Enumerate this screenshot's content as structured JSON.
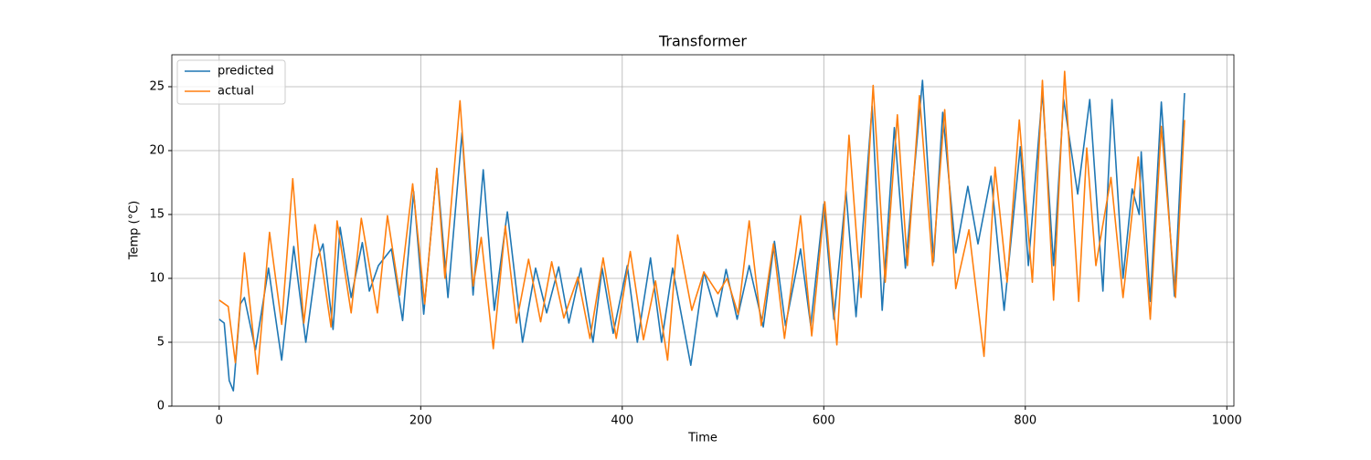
{
  "chart_data": {
    "type": "line",
    "title": "Transformer",
    "x_label": "Time",
    "y_label": "Temp (°C)",
    "xlim": [
      -47,
      1007
    ],
    "ylim": [
      0,
      27.5
    ],
    "xticks": [
      0,
      200,
      400,
      600,
      800,
      1000
    ],
    "yticks": [
      0,
      5,
      10,
      15,
      20,
      25
    ],
    "grid": true,
    "legend": "upper-left",
    "series": [
      {
        "name": "predicted",
        "color": "#1f77b4",
        "x": [
          0,
          5,
          10,
          14,
          21,
          25,
          36,
          49,
          54,
          62,
          74,
          86,
          97,
          103,
          113,
          120,
          131,
          142,
          149,
          158,
          171,
          182,
          193,
          203,
          216,
          227,
          241,
          252,
          262,
          273,
          286,
          301,
          314,
          325,
          337,
          347,
          359,
          371,
          380,
          391,
          405,
          415,
          428,
          439,
          450,
          468,
          481,
          494,
          503,
          514,
          526,
          540,
          551,
          562,
          577,
          587,
          600,
          610,
          622,
          632,
          648,
          658,
          670,
          681,
          698,
          709,
          718,
          731,
          743,
          753,
          766,
          779,
          795,
          803,
          817,
          828,
          838,
          852,
          864,
          877,
          886,
          897,
          906,
          913,
          915,
          924,
          935,
          948,
          958
        ],
        "values": [
          6.8,
          6.5,
          2,
          1.2,
          8,
          8.5,
          4.4,
          10.8,
          8,
          3.6,
          12.5,
          5,
          11.5,
          12.7,
          6,
          14,
          8.5,
          12.8,
          9,
          11,
          12.3,
          6.7,
          16.8,
          7.2,
          18.6,
          8.5,
          21.4,
          8.7,
          18.5,
          7.5,
          15.2,
          5,
          10.8,
          7.3,
          10.9,
          6.5,
          10.8,
          5,
          10.8,
          5.7,
          11,
          5,
          11.6,
          5,
          10.8,
          3.2,
          10.5,
          7,
          10.7,
          6.8,
          11,
          6.2,
          12.9,
          6.3,
          12.3,
          6.3,
          15.8,
          6.8,
          16.8,
          7,
          23.5,
          7.5,
          21.8,
          10.8,
          25.5,
          11.3,
          23,
          12,
          17.2,
          12.7,
          18,
          7.5,
          20.3,
          11,
          24.6,
          11,
          24,
          16.6,
          24,
          9,
          24,
          10,
          17,
          15,
          19.9,
          8.2,
          23.8,
          8.6,
          24.5
        ]
      },
      {
        "name": "actual",
        "color": "#ff7f0e",
        "x": [
          0,
          9,
          16,
          25,
          38,
          50,
          62,
          73,
          84,
          95,
          102,
          111,
          117,
          131,
          141,
          157,
          167,
          179,
          192,
          204,
          216,
          224,
          239,
          252,
          260,
          272,
          284,
          295,
          307,
          319,
          330,
          342,
          356,
          368,
          381,
          394,
          408,
          421,
          433,
          445,
          455,
          469,
          481,
          495,
          504,
          515,
          526,
          538,
          550,
          561,
          577,
          588,
          601,
          613,
          625,
          637,
          649,
          661,
          673,
          683,
          695,
          708,
          720,
          731,
          744,
          757,
          759,
          770,
          782,
          794,
          807,
          817,
          828,
          839,
          853,
          861,
          870,
          885,
          897,
          912,
          924,
          935,
          949,
          958
        ],
        "values": [
          8.3,
          7.8,
          3.4,
          12,
          2.5,
          13.6,
          6.4,
          17.8,
          6.5,
          14.2,
          11,
          6.2,
          14.5,
          7.3,
          14.7,
          7.3,
          14.9,
          8.7,
          17.4,
          8,
          18.6,
          10,
          23.9,
          9.4,
          13.2,
          4.5,
          14.1,
          6.5,
          11.5,
          6.6,
          11.3,
          6.9,
          10.1,
          5.3,
          11.6,
          5.3,
          12.1,
          5.2,
          9.8,
          3.6,
          13.4,
          7.5,
          10.5,
          8.8,
          10,
          7.2,
          14.5,
          6.3,
          12.7,
          5.3,
          14.9,
          5.5,
          16,
          4.8,
          21.2,
          8.5,
          25.1,
          9.7,
          22.8,
          11,
          24.3,
          11,
          23.2,
          9.2,
          13.8,
          5.2,
          3.9,
          18.7,
          9.7,
          22.4,
          9.7,
          25.5,
          8.3,
          26.2,
          8.2,
          20.2,
          11,
          17.9,
          8.5,
          19.5,
          6.8,
          21.9,
          8.5,
          22.4
        ]
      }
    ]
  }
}
